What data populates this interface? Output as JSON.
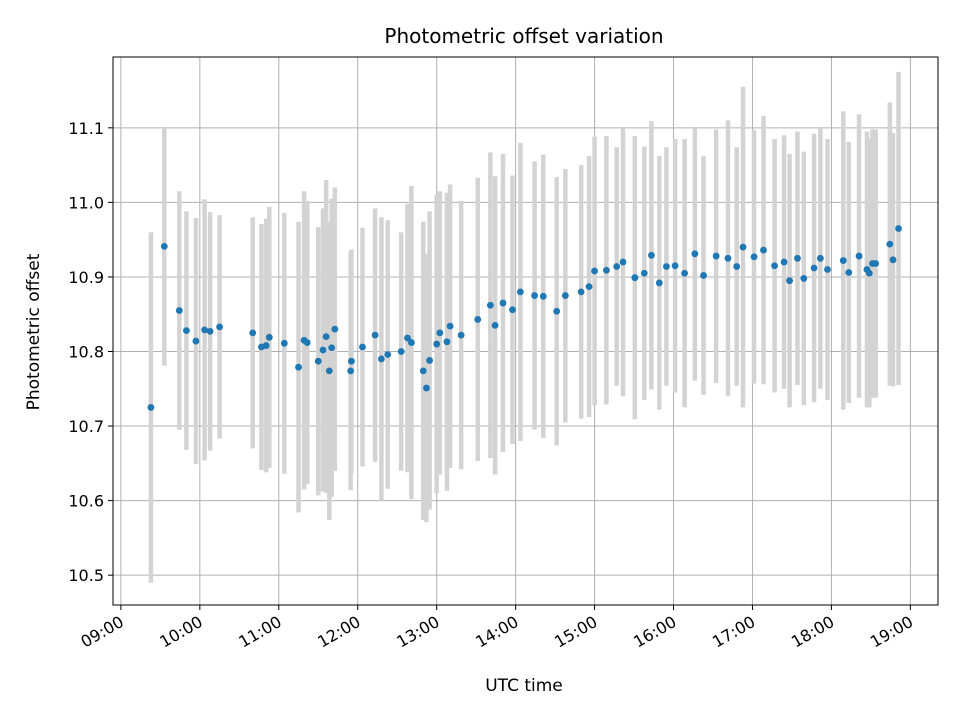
{
  "chart_data": {
    "type": "scatter",
    "title": "Photometric offset variation",
    "xlabel": "UTC time",
    "ylabel": "Photometric offset",
    "x_unit": "hour of day (UTC)",
    "xlim": [
      8.9,
      19.35
    ],
    "ylim": [
      10.46,
      11.195
    ],
    "x_ticks": [
      9,
      10,
      11,
      12,
      13,
      14,
      15,
      16,
      17,
      18,
      19
    ],
    "x_tick_labels": [
      "09:00",
      "10:00",
      "11:00",
      "12:00",
      "13:00",
      "14:00",
      "15:00",
      "16:00",
      "17:00",
      "18:00",
      "19:00"
    ],
    "y_ticks": [
      10.5,
      10.6,
      10.7,
      10.8,
      10.9,
      11.0,
      11.1
    ],
    "y_tick_labels": [
      "10.5",
      "10.6",
      "10.7",
      "10.8",
      "10.9",
      "11.0",
      "11.1"
    ],
    "grid": true,
    "colors": {
      "points": "#1f77b4",
      "errorbars": "#d3d3d3"
    },
    "series": [
      {
        "x": [
          9.38,
          9.55,
          9.74,
          9.83,
          9.95,
          10.06,
          10.13,
          10.25,
          10.67,
          10.78,
          10.84,
          10.88,
          11.07,
          11.25,
          11.32,
          11.36,
          11.5,
          11.56,
          11.6,
          11.64,
          11.67,
          11.71,
          11.91,
          11.92,
          12.06,
          12.22,
          12.3,
          12.38,
          12.55,
          12.63,
          12.68,
          12.83,
          12.87,
          12.91,
          13.0,
          13.04,
          13.13,
          13.17,
          13.31,
          13.52,
          13.68,
          13.74,
          13.84,
          13.96,
          14.06,
          14.24,
          14.35,
          14.52,
          14.63,
          14.83,
          14.93,
          15.0,
          15.15,
          15.28,
          15.36,
          15.51,
          15.63,
          15.72,
          15.82,
          15.91,
          16.02,
          16.14,
          16.27,
          16.38,
          16.54,
          16.69,
          16.8,
          16.88,
          17.02,
          17.14,
          17.28,
          17.4,
          17.47,
          17.57,
          17.65,
          17.78,
          17.86,
          17.95,
          18.15,
          18.22,
          18.35,
          18.45,
          18.48,
          18.52,
          18.56,
          18.74,
          18.78,
          18.85
        ],
        "y": [
          10.725,
          10.941,
          10.855,
          10.828,
          10.814,
          10.829,
          10.827,
          10.833,
          10.825,
          10.806,
          10.808,
          10.819,
          10.811,
          10.779,
          10.815,
          10.812,
          10.787,
          10.802,
          10.82,
          10.774,
          10.805,
          10.83,
          10.774,
          10.787,
          10.806,
          10.822,
          10.79,
          10.796,
          10.8,
          10.818,
          10.812,
          10.774,
          10.751,
          10.788,
          10.81,
          10.825,
          10.813,
          10.834,
          10.822,
          10.843,
          10.862,
          10.835,
          10.865,
          10.856,
          10.88,
          10.875,
          10.874,
          10.854,
          10.875,
          10.88,
          10.887,
          10.908,
          10.909,
          10.914,
          10.92,
          10.899,
          10.905,
          10.929,
          10.892,
          10.914,
          10.915,
          10.905,
          10.931,
          10.902,
          10.928,
          10.925,
          10.914,
          10.94,
          10.927,
          10.936,
          10.915,
          10.92,
          10.895,
          10.925,
          10.898,
          10.912,
          10.925,
          10.91,
          10.922,
          10.906,
          10.928,
          10.91,
          10.905,
          10.918,
          10.918,
          10.944,
          10.923,
          10.965
        ],
        "yerr": [
          0.235,
          0.16,
          0.16,
          0.16,
          0.165,
          0.175,
          0.16,
          0.15,
          0.155,
          0.165,
          0.17,
          0.175,
          0.175,
          0.195,
          0.2,
          0.19,
          0.18,
          0.19,
          0.21,
          0.2,
          0.2,
          0.19,
          0.16,
          0.15,
          0.16,
          0.17,
          0.19,
          0.18,
          0.16,
          0.18,
          0.21,
          0.2,
          0.18,
          0.2,
          0.2,
          0.19,
          0.2,
          0.19,
          0.18,
          0.19,
          0.205,
          0.2,
          0.2,
          0.18,
          0.2,
          0.18,
          0.19,
          0.18,
          0.17,
          0.17,
          0.175,
          0.18,
          0.18,
          0.16,
          0.18,
          0.19,
          0.17,
          0.18,
          0.17,
          0.16,
          0.17,
          0.18,
          0.17,
          0.16,
          0.17,
          0.185,
          0.16,
          0.215,
          0.17,
          0.18,
          0.17,
          0.17,
          0.17,
          0.17,
          0.17,
          0.18,
          0.175,
          0.175,
          0.2,
          0.175,
          0.19,
          0.185,
          0.18,
          0.18,
          0.18,
          0.19,
          0.17,
          0.21
        ]
      }
    ]
  }
}
